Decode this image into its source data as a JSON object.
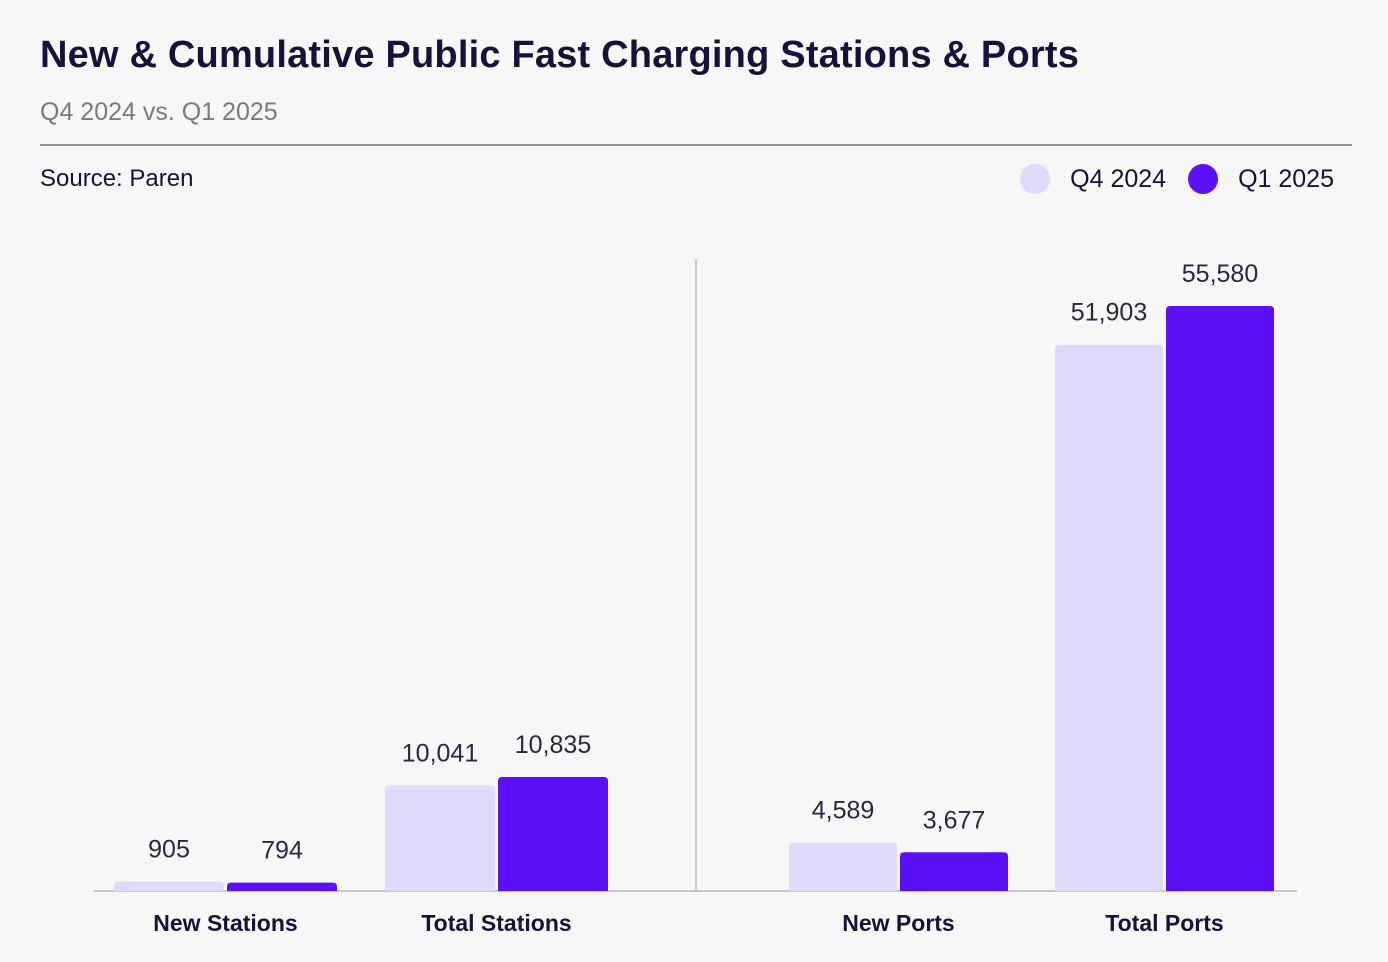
{
  "chart_data": {
    "type": "bar",
    "title": "New & Cumulative Public Fast Charging Stations & Ports",
    "subtitle": "Q4 2024 vs. Q1 2025",
    "source": "Source: Paren",
    "categories": [
      "New Stations",
      "Total Stations",
      "New Ports",
      "Total Ports"
    ],
    "series": [
      {
        "name": "Q4 2024",
        "color": "#e1dbfb",
        "values": [
          905,
          10041,
          4589,
          51903
        ],
        "labels": [
          "905",
          "10,041",
          "4,589",
          "51,903"
        ]
      },
      {
        "name": "Q1 2025",
        "color": "#5b10f5",
        "values": [
          794,
          10835,
          3677,
          55580
        ],
        "labels": [
          "794",
          "10,835",
          "3,677",
          "55,580"
        ]
      }
    ],
    "panels": [
      {
        "categories": [
          "New Stations",
          "Total Stations"
        ]
      },
      {
        "categories": [
          "New Ports",
          "Total Ports"
        ]
      }
    ],
    "legend_position": "top-right",
    "grid": false
  }
}
